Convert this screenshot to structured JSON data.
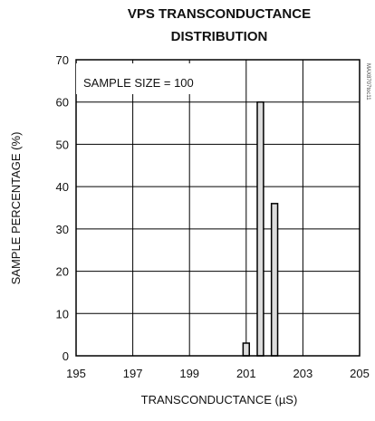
{
  "chart_data": {
    "type": "bar",
    "title_lines": [
      "VPS TRANSCONDUCTANCE",
      "DISTRIBUTION"
    ],
    "xlabel": "TRANSCONDUCTANCE (µS)",
    "ylabel": "SAMPLE PERCENTAGE (%)",
    "annotation": "SAMPLE SIZE = 100",
    "watermark": "MAX8707toc11",
    "xlim": [
      195,
      205
    ],
    "ylim": [
      0,
      70
    ],
    "x_ticks": [
      195,
      197,
      199,
      201,
      203,
      205
    ],
    "y_ticks": [
      0,
      10,
      20,
      30,
      40,
      50,
      60,
      70
    ],
    "bars": [
      {
        "x": 201.0,
        "value": 3
      },
      {
        "x": 201.5,
        "value": 60
      },
      {
        "x": 202.0,
        "value": 36
      }
    ],
    "bar_width": 0.22,
    "grid": true,
    "bar_fill": "#dcdcdc",
    "bar_stroke": "#000000"
  }
}
